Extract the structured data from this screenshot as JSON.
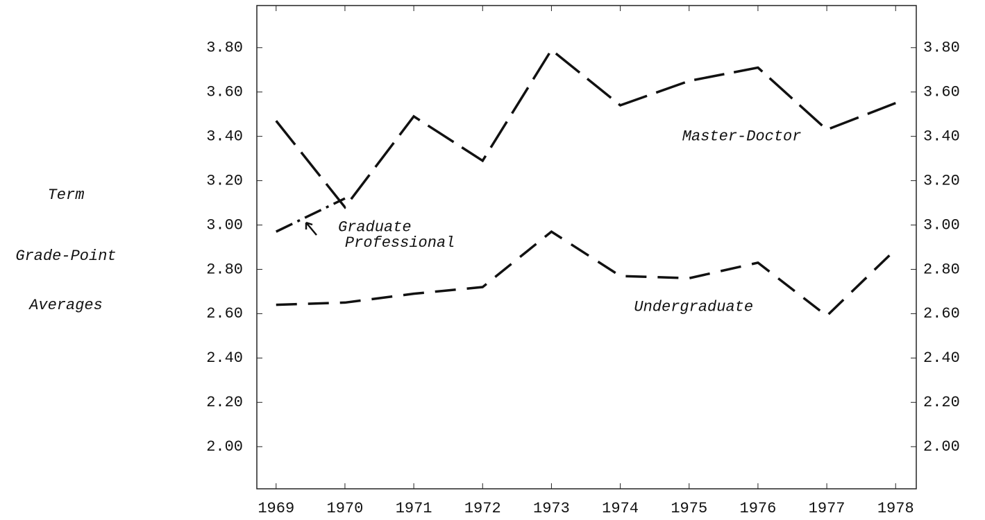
{
  "chart_data": {
    "type": "line",
    "ylabel": [
      "Term",
      "Grade-Point",
      "Averages"
    ],
    "x": [
      1969,
      1970,
      1971,
      1972,
      1973,
      1974,
      1975,
      1976,
      1977,
      1978
    ],
    "xlim": [
      1968.72,
      1978.3
    ],
    "xticks": [
      1969,
      1970,
      1971,
      1972,
      1973,
      1974,
      1975,
      1976,
      1977,
      1978
    ],
    "ylim": [
      1.81,
      3.99
    ],
    "yticks": [
      {
        "value": 2.0,
        "label": "2.00"
      },
      {
        "value": 2.2,
        "label": "2.20"
      },
      {
        "value": 2.4,
        "label": "2.40"
      },
      {
        "value": 2.6,
        "label": "2.60"
      },
      {
        "value": 2.8,
        "label": "2.80"
      },
      {
        "value": 3.0,
        "label": "3.00"
      },
      {
        "value": 3.2,
        "label": "3.20"
      },
      {
        "value": 3.4,
        "label": "3.40"
      },
      {
        "value": 3.6,
        "label": "3.60"
      },
      {
        "value": 3.8,
        "label": "3.80"
      }
    ],
    "series": [
      {
        "name": "Master-Doctor",
        "color": "#111111",
        "dash": "44 14",
        "values": [
          3.47,
          3.08,
          3.49,
          3.29,
          3.79,
          3.54,
          3.65,
          3.71,
          3.43,
          3.55
        ]
      },
      {
        "name": "Graduate Professional",
        "color": "#111111",
        "dash": "26 8 4 8",
        "values": [
          2.97,
          3.12,
          null,
          null,
          null,
          null,
          null,
          null,
          null,
          null
        ]
      },
      {
        "name": "Undergraduate",
        "color": "#111111",
        "dash": "30 16",
        "values": [
          2.64,
          2.65,
          2.69,
          2.72,
          2.97,
          2.77,
          2.76,
          2.83,
          2.59,
          2.89
        ]
      }
    ],
    "annotations": [
      {
        "text": "Master-Doctor",
        "x": 1974.9,
        "y": 3.4
      },
      {
        "text": "Graduate",
        "x": 1969.9,
        "y": 2.99
      },
      {
        "text": "Professional",
        "x": 1970.0,
        "y": 2.92
      },
      {
        "text": "Undergraduate",
        "x": 1974.2,
        "y": 2.63
      }
    ]
  }
}
